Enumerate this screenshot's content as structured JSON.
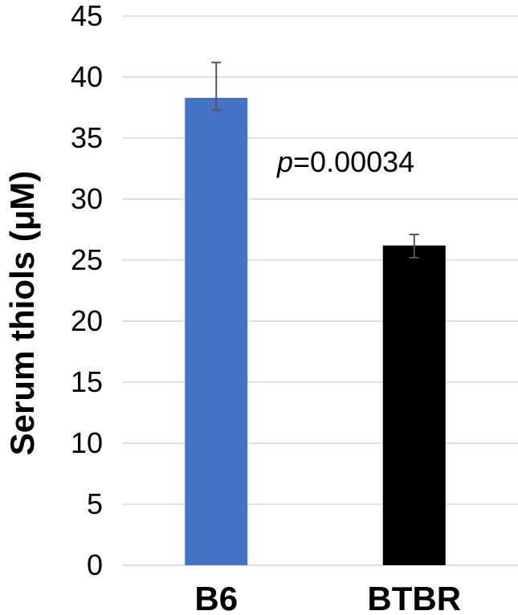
{
  "chart_data": {
    "type": "bar",
    "categories": [
      "B6",
      "BTBR"
    ],
    "values": [
      38.3,
      26.2
    ],
    "errors": [
      {
        "low": 37.3,
        "high": 41.2
      },
      {
        "low": 25.2,
        "high": 27.1
      }
    ],
    "colors": [
      "#4472c4",
      "#000000"
    ],
    "ylabel": "Serum thiols (μM)",
    "ylim": [
      0,
      45
    ],
    "yticks": [
      0,
      5,
      10,
      15,
      20,
      25,
      30,
      35,
      40,
      45
    ],
    "grid": true,
    "annotation": {
      "italic": "p",
      "text": "=0.00034"
    }
  }
}
